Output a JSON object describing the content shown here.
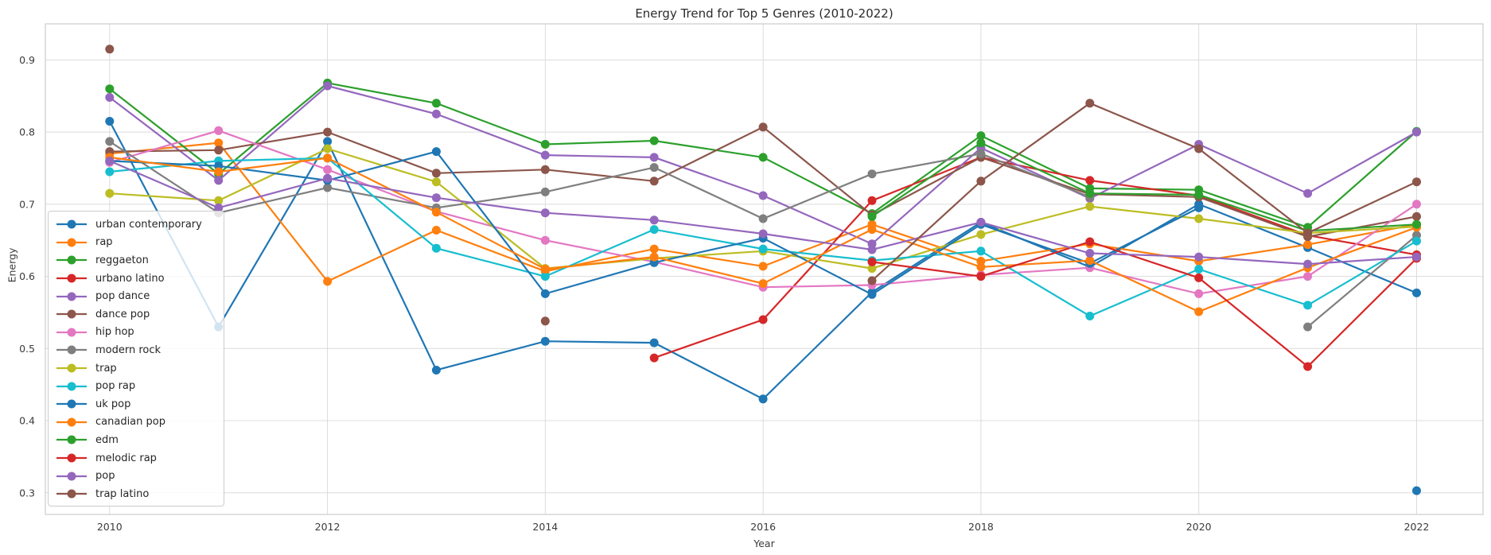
{
  "title": "Energy Trend for Top 5 Genres (2010-2022)",
  "xlabel": "Year",
  "ylabel": "Energy",
  "chart_data": {
    "type": "line",
    "x": [
      2010,
      2011,
      2012,
      2013,
      2014,
      2015,
      2016,
      2017,
      2018,
      2019,
      2020,
      2021,
      2022
    ],
    "x_tick_labels": [
      2010,
      2012,
      2014,
      2016,
      2018,
      2020,
      2022
    ],
    "y_ticks": [
      0.3,
      0.4,
      0.5,
      0.6,
      0.7,
      0.8,
      0.9
    ],
    "xlim": [
      2009.41,
      2022.61
    ],
    "ylim": [
      0.27,
      0.95
    ],
    "grid": true,
    "grid_color": "#dcdcdc",
    "border_color": "#cccccc",
    "legend_position": "upper-left-inside",
    "marker": "circle",
    "series": [
      {
        "name": "urban contemporary",
        "color": "#1f77b4",
        "values": [
          0.815,
          0.53,
          0.787,
          0.47,
          0.51,
          0.508,
          0.43,
          0.578,
          0.675,
          0.613,
          0.7,
          0.64,
          0.577
        ]
      },
      {
        "name": "rap",
        "color": "#ff7f0e",
        "values": [
          0.77,
          0.785,
          0.593,
          0.664,
          0.607,
          0.638,
          0.614,
          0.672,
          0.621,
          0.645,
          0.621,
          0.644,
          0.672
        ]
      },
      {
        "name": "reggaeton",
        "color": "#2ca02c",
        "values": [
          0.86,
          0.742,
          0.868,
          0.84,
          0.783,
          0.788,
          0.765,
          0.687,
          0.795,
          0.722,
          0.72,
          0.668,
          0.801
        ]
      },
      {
        "name": "urbano latino",
        "color": "#d62728",
        "values": [
          null,
          null,
          null,
          null,
          null,
          0.487,
          0.54,
          0.705,
          0.765,
          0.733,
          0.712,
          0.657,
          0.63
        ]
      },
      {
        "name": "pop dance",
        "color": "#9467bd",
        "values": [
          0.848,
          0.733,
          0.864,
          0.825,
          0.768,
          0.765,
          0.712,
          0.645,
          0.778,
          0.708,
          0.783,
          0.715,
          0.8
        ]
      },
      {
        "name": "dance pop",
        "color": "#8c564b",
        "values": [
          0.773,
          0.775,
          0.8,
          0.743,
          0.748,
          0.732,
          0.807,
          0.685,
          0.765,
          0.714,
          0.71,
          0.655,
          0.683
        ]
      },
      {
        "name": "hip hop",
        "color": "#e377c2",
        "values": [
          0.758,
          0.802,
          0.748,
          0.69,
          0.65,
          0.62,
          0.585,
          0.588,
          0.602,
          0.612,
          0.576,
          0.6,
          0.7
        ]
      },
      {
        "name": "modern rock",
        "color": "#7f7f7f",
        "values": [
          0.787,
          0.688,
          0.723,
          0.695,
          0.717,
          0.751,
          0.68,
          0.742,
          0.77,
          0.71,
          null,
          0.53,
          0.657
        ]
      },
      {
        "name": "trap",
        "color": "#bcbd22",
        "values": [
          0.715,
          0.705,
          0.777,
          0.731,
          0.611,
          0.625,
          0.635,
          0.611,
          0.658,
          0.697,
          0.68,
          0.66,
          0.669
        ]
      },
      {
        "name": "pop rap",
        "color": "#17becf",
        "values": [
          0.745,
          0.76,
          0.764,
          0.639,
          0.6,
          0.665,
          0.638,
          0.622,
          0.635,
          0.545,
          0.61,
          0.56,
          0.649
        ]
      },
      {
        "name": "uk pop",
        "color": "#1f77b4",
        "values": [
          0.76,
          0.753,
          0.733,
          0.773,
          0.576,
          0.619,
          0.653,
          0.575,
          0.672,
          0.618,
          0.695,
          null,
          0.303
        ]
      },
      {
        "name": "canadian pop",
        "color": "#ff7f0e",
        "values": [
          0.765,
          0.745,
          0.764,
          0.689,
          0.61,
          0.627,
          0.59,
          0.665,
          0.613,
          0.622,
          0.551,
          0.612,
          0.668
        ]
      },
      {
        "name": "edm",
        "color": "#2ca02c",
        "values": [
          null,
          null,
          null,
          null,
          null,
          null,
          null,
          0.683,
          0.785,
          0.715,
          0.713,
          0.663,
          0.672
        ]
      },
      {
        "name": "melodic rap",
        "color": "#d62728",
        "values": [
          null,
          null,
          null,
          null,
          null,
          null,
          null,
          0.62,
          0.6,
          0.648,
          0.598,
          0.475,
          0.625
        ]
      },
      {
        "name": "pop",
        "color": "#9467bd",
        "values": [
          0.76,
          0.695,
          0.736,
          0.709,
          0.688,
          0.678,
          0.659,
          0.637,
          0.675,
          0.632,
          0.627,
          0.617,
          0.627
        ]
      },
      {
        "name": "trap latino",
        "color": "#8c564b",
        "values": [
          0.915,
          null,
          null,
          null,
          0.538,
          null,
          null,
          0.594,
          0.732,
          0.84,
          0.777,
          0.66,
          0.731
        ]
      }
    ]
  }
}
